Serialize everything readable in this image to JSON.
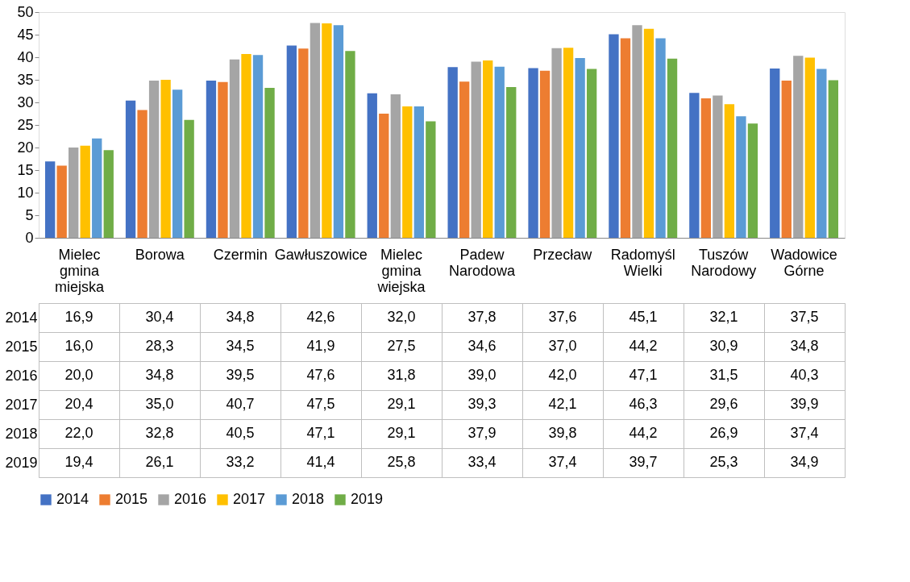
{
  "chart_data": {
    "type": "bar",
    "categories": [
      "Mielec gmina miejska",
      "Borowa",
      "Czermin",
      "Gawłuszowice",
      "Mielec gmina wiejska",
      "Padew Narodowa",
      "Przecław",
      "Radomyśl Wielki",
      "Tuszów Narodowy",
      "Wadowice Górne"
    ],
    "series": [
      {
        "name": "2014",
        "color": "#4472c4",
        "values": [
          16.9,
          30.4,
          34.8,
          42.6,
          32.0,
          37.8,
          37.6,
          45.1,
          32.1,
          37.5
        ],
        "value_labels": [
          "16,9",
          "30,4",
          "34,8",
          "42,6",
          "32,0",
          "37,8",
          "37,6",
          "45,1",
          "32,1",
          "37,5"
        ]
      },
      {
        "name": "2015",
        "color": "#ed7d31",
        "values": [
          16.0,
          28.3,
          34.5,
          41.9,
          27.5,
          34.6,
          37.0,
          44.2,
          30.9,
          34.8
        ],
        "value_labels": [
          "16,0",
          "28,3",
          "34,5",
          "41,9",
          "27,5",
          "34,6",
          "37,0",
          "44,2",
          "30,9",
          "34,8"
        ]
      },
      {
        "name": "2016",
        "color": "#a5a5a5",
        "values": [
          20.0,
          34.8,
          39.5,
          47.6,
          31.8,
          39.0,
          42.0,
          47.1,
          31.5,
          40.3
        ],
        "value_labels": [
          "20,0",
          "34,8",
          "39,5",
          "47,6",
          "31,8",
          "39,0",
          "42,0",
          "47,1",
          "31,5",
          "40,3"
        ]
      },
      {
        "name": "2017",
        "color": "#ffc000",
        "values": [
          20.4,
          35.0,
          40.7,
          47.5,
          29.1,
          39.3,
          42.1,
          46.3,
          29.6,
          39.9
        ],
        "value_labels": [
          "20,4",
          "35,0",
          "40,7",
          "47,5",
          "29,1",
          "39,3",
          "42,1",
          "46,3",
          "29,6",
          "39,9"
        ]
      },
      {
        "name": "2018",
        "color": "#5b9bd5",
        "values": [
          22.0,
          32.8,
          40.5,
          47.1,
          29.1,
          37.9,
          39.8,
          44.2,
          26.9,
          37.4
        ],
        "value_labels": [
          "22,0",
          "32,8",
          "40,5",
          "47,1",
          "29,1",
          "37,9",
          "39,8",
          "44,2",
          "26,9",
          "37,4"
        ]
      },
      {
        "name": "2019",
        "color": "#70ad47",
        "values": [
          19.4,
          26.1,
          33.2,
          41.4,
          25.8,
          33.4,
          37.4,
          39.7,
          25.3,
          34.9
        ],
        "value_labels": [
          "19,4",
          "26,1",
          "33,2",
          "41,4",
          "25,8",
          "33,4",
          "37,4",
          "39,7",
          "25,3",
          "34,9"
        ]
      }
    ],
    "ylim": [
      0,
      50
    ],
    "yticks": [
      0,
      5,
      10,
      15,
      20,
      25,
      30,
      35,
      40,
      45,
      50
    ],
    "grid": false,
    "legend": "bottom"
  }
}
